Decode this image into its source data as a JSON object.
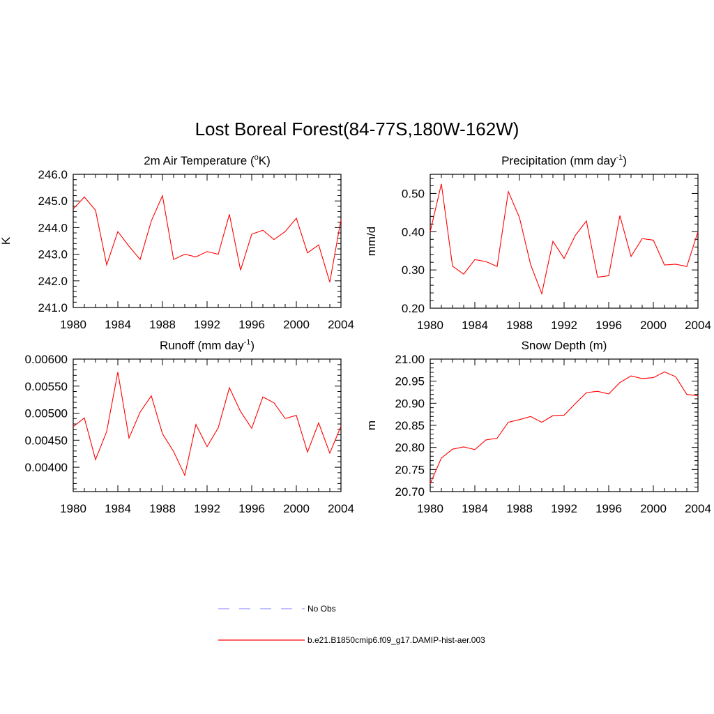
{
  "title": "Lost Boreal Forest(84-77S,180W-162W)",
  "colors": {
    "model": "#ff0000",
    "obs": "#9999ff",
    "axis": "#000000"
  },
  "legend": {
    "obs_label": "No Obs",
    "model_label": "b.e21.B1850cmip6.f09_g17.DAMIP-hist-aer.003"
  },
  "chart_data": [
    {
      "type": "line",
      "title_main": "2m Air Temperature (",
      "title_sup1": "o",
      "title_after_sup1": "K)",
      "ylabel": "K",
      "xlim": [
        1980,
        2004
      ],
      "ylim": [
        241.0,
        246.0
      ],
      "xticks": [
        "1980",
        "1984",
        "1988",
        "1992",
        "1996",
        "2000",
        "2004"
      ],
      "yticks": [
        "241.0",
        "242.0",
        "243.0",
        "244.0",
        "245.0",
        "246.0"
      ],
      "x": [
        1980,
        1981,
        1982,
        1983,
        1984,
        1985,
        1986,
        1987,
        1988,
        1989,
        1990,
        1991,
        1992,
        1993,
        1994,
        1995,
        1996,
        1997,
        1998,
        1999,
        2000,
        2001,
        2002,
        2003,
        2004
      ],
      "series": [
        {
          "values": [
            244.7,
            245.15,
            244.65,
            242.6,
            243.85,
            243.3,
            242.8,
            244.25,
            245.2,
            242.8,
            243.0,
            242.9,
            243.1,
            243.0,
            244.5,
            242.4,
            243.75,
            243.9,
            243.55,
            243.85,
            244.35,
            243.05,
            243.35,
            241.95,
            244.3
          ]
        }
      ]
    },
    {
      "type": "line",
      "title_main": "Precipitation (mm day",
      "title_sup1": "-1",
      "title_after_sup1": ")",
      "ylabel": "mm/d",
      "xlim": [
        1980,
        2004
      ],
      "ylim": [
        0.2,
        0.55
      ],
      "xticks": [
        "1980",
        "1984",
        "1988",
        "1992",
        "1996",
        "2000",
        "2004"
      ],
      "yticks": [
        "0.20",
        "0.30",
        "0.40",
        "0.50"
      ],
      "x": [
        1980,
        1981,
        1982,
        1983,
        1984,
        1985,
        1986,
        1987,
        1988,
        1989,
        1990,
        1991,
        1992,
        1993,
        1994,
        1995,
        1996,
        1997,
        1998,
        1999,
        2000,
        2001,
        2002,
        2003,
        2004
      ],
      "series": [
        {
          "values": [
            0.4,
            0.525,
            0.31,
            0.289,
            0.327,
            0.322,
            0.309,
            0.505,
            0.437,
            0.314,
            0.238,
            0.375,
            0.33,
            0.39,
            0.428,
            0.281,
            0.285,
            0.442,
            0.335,
            0.382,
            0.378,
            0.313,
            0.315,
            0.309,
            0.4
          ]
        }
      ]
    },
    {
      "type": "line",
      "title_main": "Runoff (mm day",
      "title_sup1": "-1",
      "title_after_sup1": ")",
      "ylabel": "",
      "xlim": [
        1980,
        2004
      ],
      "ylim": [
        0.00355,
        0.006
      ],
      "xticks": [
        "1980",
        "1984",
        "1988",
        "1992",
        "1996",
        "2000",
        "2004"
      ],
      "yticks": [
        "0.00400",
        "0.00450",
        "0.00500",
        "0.00550",
        "0.00600"
      ],
      "x": [
        1980,
        1981,
        1982,
        1983,
        1984,
        1985,
        1986,
        1987,
        1988,
        1989,
        1990,
        1991,
        1992,
        1993,
        1994,
        1995,
        1996,
        1997,
        1998,
        1999,
        2000,
        2001,
        2002,
        2003,
        2004
      ],
      "series": [
        {
          "values": [
            0.00475,
            0.00491,
            0.00414,
            0.00466,
            0.00576,
            0.00454,
            0.00502,
            0.00532,
            0.00462,
            0.00429,
            0.00385,
            0.00479,
            0.00438,
            0.00473,
            0.00547,
            0.00503,
            0.00472,
            0.0053,
            0.00519,
            0.0049,
            0.00496,
            0.00428,
            0.00482,
            0.00426,
            0.00476
          ]
        }
      ]
    },
    {
      "type": "line",
      "title_main": "Snow Depth (m)",
      "title_sup1": "",
      "title_after_sup1": "",
      "ylabel": "m",
      "xlim": [
        1980,
        2004
      ],
      "ylim": [
        20.7,
        21.0
      ],
      "xticks": [
        "1980",
        "1984",
        "1988",
        "1992",
        "1996",
        "2000",
        "2004"
      ],
      "yticks": [
        "20.70",
        "20.75",
        "20.80",
        "20.85",
        "20.90",
        "20.95",
        "21.00"
      ],
      "x": [
        1980,
        1981,
        1982,
        1983,
        1984,
        1985,
        1986,
        1987,
        1988,
        1989,
        1990,
        1991,
        1992,
        1993,
        1994,
        1995,
        1996,
        1997,
        1998,
        1999,
        2000,
        2001,
        2002,
        2003,
        2004
      ],
      "series": [
        {
          "values": [
            20.718,
            20.776,
            20.796,
            20.801,
            20.795,
            20.817,
            20.821,
            20.857,
            20.863,
            20.87,
            20.857,
            20.872,
            20.873,
            20.899,
            20.924,
            20.927,
            20.921,
            20.947,
            20.962,
            20.956,
            20.958,
            20.971,
            20.96,
            20.92,
            20.917
          ]
        }
      ]
    }
  ]
}
